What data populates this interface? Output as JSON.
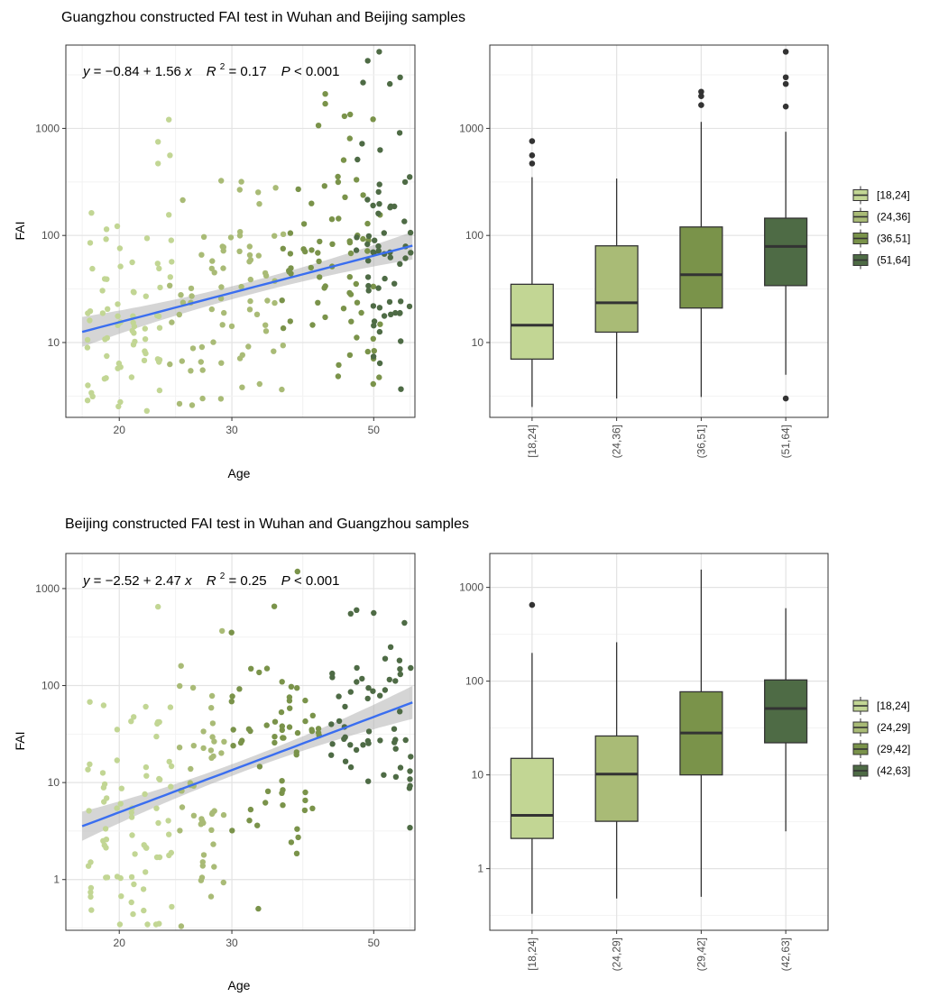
{
  "figure": {
    "panels": [
      {
        "title": "Guangzhou constructed FAI test in Wuhan and Beijing samples",
        "equation": {
          "y_label": "y",
          "intercept": "−0.84",
          "slope": "1.56",
          "x_label": "x",
          "r2_label": "R",
          "r2_value": "0.17",
          "p_label": "P",
          "p_value": "0.001"
        },
        "groups": [
          "[18,24]",
          "(24,36]",
          "(36,51]",
          "(51,64]"
        ],
        "colors": [
          "#c2d694",
          "#a9bb76",
          "#7a934a",
          "#4e6b45"
        ],
        "line_color": "#3a6ef0"
      },
      {
        "title": "Beijing constructed FAI test in Wuhan and Guangzhou samples",
        "equation": {
          "y_label": "y",
          "intercept": "−2.52",
          "slope": "2.47",
          "x_label": "x",
          "r2_label": "R",
          "r2_value": "0.25",
          "p_label": "P",
          "p_value": "0.001"
        },
        "groups": [
          "[18,24]",
          "(24,29]",
          "(29,42]",
          "(42,63]"
        ],
        "colors": [
          "#c2d694",
          "#a9bb76",
          "#7a934a",
          "#4e6b45"
        ],
        "line_color": "#3a6ef0"
      }
    ]
  },
  "chart_data": [
    {
      "type": "scatter",
      "title": "Guangzhou constructed FAI test in Wuhan and Beijing samples",
      "xlabel": "Age",
      "ylabel": "FAI",
      "x_scale": "log10",
      "y_scale": "log10",
      "xlim": [
        16.5,
        58
      ],
      "ylim": [
        2,
        6000
      ],
      "x_ticks": [
        20,
        30,
        50
      ],
      "x_tick_labels": [
        "20",
        "30",
        "50"
      ],
      "y_ticks": [
        10,
        100,
        1000
      ],
      "y_tick_labels": [
        "10",
        "100",
        "1000"
      ],
      "fit": {
        "intercept": -0.84,
        "slope": 1.56,
        "r2": 0.17,
        "p": "< 0.001",
        "x_from": 17.5,
        "x_to": 57.5,
        "ci_halfwidth_log10": [
          0.14,
          0.06,
          0.13
        ]
      },
      "seed": 7,
      "groups": [
        {
          "name": "[18,24]",
          "age_range": [
            17.5,
            24
          ],
          "n": 70,
          "center_fai": 16,
          "spread_log10": 0.5
        },
        {
          "name": "(24,36]",
          "age_range": [
            24.2,
            36
          ],
          "n": 72,
          "center_fai": 25,
          "spread_log10": 0.55
        },
        {
          "name": "(36,51]",
          "age_range": [
            36.2,
            51
          ],
          "n": 70,
          "center_fai": 45,
          "spread_log10": 0.55
        },
        {
          "name": "(51,64]",
          "age_range": [
            47,
            57.5
          ],
          "n": 60,
          "center_fai": 75,
          "spread_log10": 0.55
        }
      ],
      "outliers": [
        {
          "age": 51,
          "fai": 5200
        },
        {
          "age": 55,
          "fai": 3000
        },
        {
          "age": 53,
          "fai": 2600
        },
        {
          "age": 42,
          "fai": 2100
        },
        {
          "age": 42,
          "fai": 1700
        },
        {
          "age": 45,
          "fai": 1300
        },
        {
          "age": 23,
          "fai": 750
        },
        {
          "age": 24,
          "fai": 560
        },
        {
          "age": 23,
          "fai": 470
        },
        {
          "age": 27,
          "fai": 3
        },
        {
          "age": 26,
          "fai": 2.6
        }
      ]
    },
    {
      "type": "box",
      "ylabel": "",
      "y_scale": "log10",
      "ylim": [
        2,
        6000
      ],
      "y_ticks": [
        10,
        100,
        1000
      ],
      "y_tick_labels": [
        "10",
        "100",
        "1000"
      ],
      "categories": [
        "[18,24]",
        "(24,36]",
        "(36,51]",
        "(51,64]"
      ],
      "boxes": [
        {
          "whisker_low": 2.5,
          "q1": 7,
          "median": 14.5,
          "q3": 35,
          "whisker_high": 350,
          "outliers": [
            470,
            560,
            760
          ]
        },
        {
          "whisker_low": 3,
          "q1": 12.5,
          "median": 23.5,
          "q3": 80,
          "whisker_high": 340,
          "outliers": []
        },
        {
          "whisker_low": 3.1,
          "q1": 21,
          "median": 43,
          "q3": 120,
          "whisker_high": 1150,
          "outliers": [
            1650,
            2000,
            2200
          ]
        },
        {
          "whisker_low": 5,
          "q1": 34,
          "median": 79,
          "q3": 145,
          "whisker_high": 930,
          "outliers": [
            3,
            1600,
            2600,
            3000,
            5200
          ]
        }
      ],
      "legend": [
        "[18,24]",
        "(24,36]",
        "(36,51]",
        "(51,64]"
      ]
    },
    {
      "type": "scatter",
      "title": "Beijing constructed FAI test in Wuhan and Guangzhou samples",
      "xlabel": "Age",
      "ylabel": "FAI",
      "x_scale": "log10",
      "y_scale": "log10",
      "xlim": [
        16.5,
        58
      ],
      "ylim": [
        0.3,
        2300
      ],
      "x_ticks": [
        20,
        30,
        50
      ],
      "x_tick_labels": [
        "20",
        "30",
        "50"
      ],
      "y_ticks": [
        1,
        10,
        100,
        1000
      ],
      "y_tick_labels": [
        "1",
        "10",
        "100",
        "1000"
      ],
      "fit": {
        "intercept": -2.52,
        "slope": 2.47,
        "r2": 0.25,
        "p": "< 0.001",
        "x_from": 17.5,
        "x_to": 57.5,
        "ci_halfwidth_log10": [
          0.15,
          0.06,
          0.17
        ]
      },
      "seed": 21,
      "groups": [
        {
          "name": "[18,24]",
          "age_range": [
            17.5,
            24.5
          ],
          "n": 75,
          "center_fai": 4,
          "spread_log10": 0.65
        },
        {
          "name": "(24,29]",
          "age_range": [
            24.5,
            29
          ],
          "n": 45,
          "center_fai": 10,
          "spread_log10": 0.6
        },
        {
          "name": "(29,42]",
          "age_range": [
            29.2,
            42
          ],
          "n": 60,
          "center_fai": 28,
          "spread_log10": 0.55
        },
        {
          "name": "(42,63]",
          "age_range": [
            42.5,
            57.5
          ],
          "n": 55,
          "center_fai": 50,
          "spread_log10": 0.45
        }
      ],
      "outliers": [
        {
          "age": 38,
          "fai": 1500
        },
        {
          "age": 23,
          "fai": 650
        },
        {
          "age": 47,
          "fai": 600
        },
        {
          "age": 50,
          "fai": 560
        },
        {
          "age": 33,
          "fai": 0.5
        },
        {
          "age": 25,
          "fai": 0.33
        }
      ]
    },
    {
      "type": "box",
      "ylabel": "",
      "y_scale": "log10",
      "ylim": [
        0.22,
        2300
      ],
      "y_ticks": [
        1,
        10,
        100,
        1000
      ],
      "y_tick_labels": [
        "1",
        "10",
        "100",
        "1000"
      ],
      "categories": [
        "[18,24]",
        "(24,29]",
        "(29,42]",
        "(42,63]"
      ],
      "boxes": [
        {
          "whisker_low": 0.33,
          "q1": 2.1,
          "median": 3.7,
          "q3": 15,
          "whisker_high": 200,
          "outliers": [
            650
          ]
        },
        {
          "whisker_low": 0.48,
          "q1": 3.2,
          "median": 10.2,
          "q3": 26,
          "whisker_high": 260,
          "outliers": []
        },
        {
          "whisker_low": 0.5,
          "q1": 10,
          "median": 28,
          "q3": 77,
          "whisker_high": 1550,
          "outliers": []
        },
        {
          "whisker_low": 2.5,
          "q1": 22,
          "median": 51,
          "q3": 103,
          "whisker_high": 600,
          "outliers": []
        }
      ],
      "legend": [
        "[18,24]",
        "(24,29]",
        "(29,42]",
        "(42,63]"
      ]
    }
  ]
}
